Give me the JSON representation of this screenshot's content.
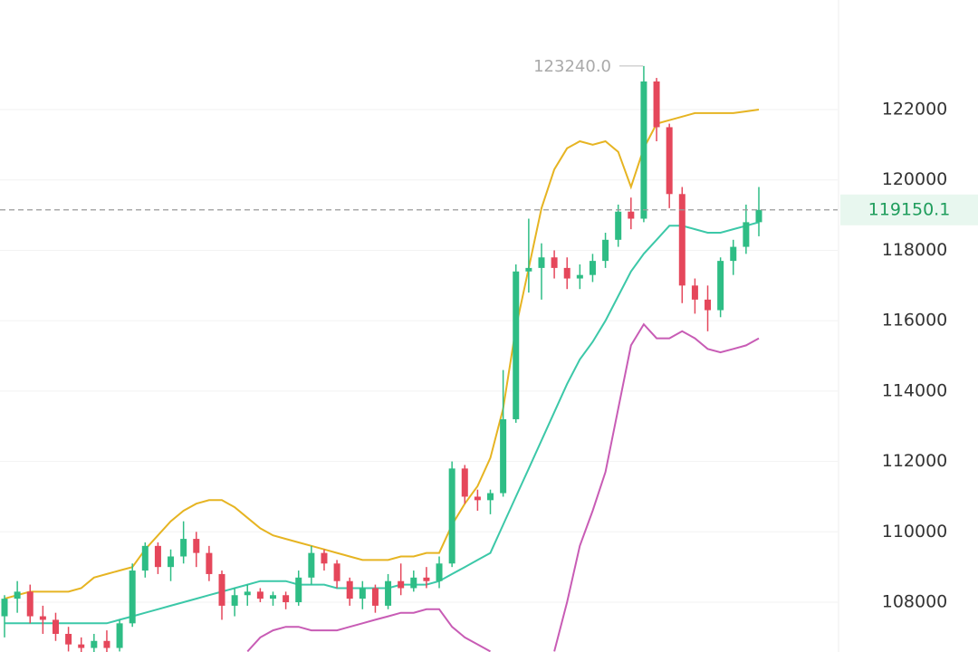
{
  "chart_data": {
    "type": "candlestick",
    "up_color": "#2ebd85",
    "down_color": "#e5475b",
    "open": [
      107600,
      108100,
      108300,
      107600,
      107500,
      107100,
      106800,
      106700,
      106900,
      106700,
      107400,
      108900,
      109600,
      109000,
      109300,
      109800,
      109400,
      108800,
      107900,
      108200,
      108300,
      108100,
      108200,
      108000,
      108700,
      109400,
      109100,
      108600,
      108100,
      108400,
      107900,
      108600,
      108400,
      108700,
      108600,
      109100,
      111800,
      111000,
      110900,
      111100,
      113200,
      117400,
      117500,
      117800,
      117500,
      117200,
      117300,
      117700,
      118300,
      119100,
      118900,
      122800,
      121500,
      119600,
      117000,
      116600,
      116300,
      117700,
      118100,
      118800
    ],
    "high": [
      108200,
      108600,
      108500,
      107900,
      107700,
      107300,
      107000,
      107100,
      107200,
      107500,
      109100,
      109700,
      109700,
      109500,
      110300,
      110000,
      109600,
      108900,
      108400,
      108500,
      108400,
      108300,
      108300,
      108900,
      109600,
      109500,
      109200,
      108700,
      108600,
      108500,
      108800,
      109100,
      108900,
      109000,
      109300,
      112000,
      111900,
      111200,
      111200,
      114600,
      117600,
      118900,
      118200,
      118000,
      117800,
      117600,
      117900,
      118500,
      119300,
      119500,
      123240,
      122900,
      121600,
      119800,
      117200,
      117000,
      117800,
      118300,
      119300,
      119800
    ],
    "low": [
      107000,
      107700,
      107400,
      107100,
      106900,
      106600,
      106500,
      106400,
      106500,
      106600,
      107300,
      108700,
      108800,
      108600,
      109100,
      109000,
      108600,
      107500,
      107600,
      107900,
      108000,
      107900,
      107800,
      107900,
      108500,
      108900,
      108400,
      107900,
      107800,
      107700,
      107800,
      108200,
      108300,
      108400,
      108400,
      109000,
      110800,
      110600,
      110500,
      111000,
      113100,
      116800,
      116600,
      117200,
      116900,
      116900,
      117100,
      117500,
      118100,
      118600,
      118800,
      121100,
      119200,
      116500,
      116200,
      115700,
      116100,
      117300,
      117900,
      118400
    ],
    "close": [
      108100,
      108300,
      107600,
      107500,
      107100,
      106800,
      106700,
      106900,
      106700,
      107400,
      108900,
      109600,
      109000,
      109300,
      109800,
      109400,
      108800,
      107900,
      108200,
      108300,
      108100,
      108200,
      108000,
      108700,
      109400,
      109100,
      108600,
      108100,
      108400,
      107900,
      108600,
      108400,
      108700,
      108600,
      109100,
      111800,
      111000,
      110900,
      111100,
      113200,
      117400,
      117500,
      117800,
      117500,
      117200,
      117300,
      117700,
      118300,
      119100,
      118900,
      122800,
      121500,
      119600,
      117000,
      116600,
      116300,
      117700,
      118100,
      118800,
      119150.1
    ],
    "lines": [
      {
        "color": "#e6b422",
        "values": [
          108100,
          108200,
          108300,
          108300,
          108300,
          108300,
          108400,
          108700,
          108800,
          108900,
          109000,
          109500,
          109900,
          110300,
          110600,
          110800,
          110900,
          110900,
          110700,
          110400,
          110100,
          109900,
          109800,
          109700,
          109600,
          109500,
          109400,
          109300,
          109200,
          109200,
          109200,
          109300,
          109300,
          109400,
          109400,
          110200,
          110800,
          111300,
          112100,
          113500,
          115800,
          117500,
          119200,
          120300,
          120900,
          121100,
          121000,
          121100,
          120800,
          119800,
          120900,
          121600,
          121700,
          121800,
          121900,
          121900,
          121900,
          121900,
          121950,
          122000
        ]
      },
      {
        "color": "#3cc8a8",
        "values": [
          107400,
          107400,
          107400,
          107400,
          107400,
          107400,
          107400,
          107400,
          107400,
          107500,
          107600,
          107700,
          107800,
          107900,
          108000,
          108100,
          108200,
          108300,
          108400,
          108500,
          108600,
          108600,
          108600,
          108500,
          108500,
          108500,
          108400,
          108400,
          108400,
          108400,
          108400,
          108500,
          108500,
          108500,
          108600,
          108800,
          109000,
          109200,
          109400,
          110200,
          111000,
          111800,
          112600,
          113400,
          114200,
          114900,
          115400,
          116000,
          116700,
          117400,
          117900,
          118300,
          118700,
          118700,
          118600,
          118500,
          118500,
          118600,
          118700,
          118800
        ]
      },
      {
        "color": "#c85cb5",
        "values": [
          null,
          null,
          null,
          null,
          null,
          null,
          null,
          null,
          null,
          null,
          null,
          null,
          null,
          null,
          null,
          null,
          null,
          null,
          null,
          106600,
          107000,
          107200,
          107300,
          107300,
          107200,
          107200,
          107200,
          107300,
          107400,
          107500,
          107600,
          107700,
          107700,
          107800,
          107800,
          107300,
          107000,
          106800,
          106600,
          null,
          null,
          null,
          null,
          106600,
          108000,
          109600,
          110600,
          111700,
          113500,
          115300,
          115900,
          115500,
          115500,
          115700,
          115500,
          115200,
          115100,
          115200,
          115300,
          115500
        ]
      }
    ],
    "ylim": [
      106585,
      125115
    ],
    "yticks": [
      108000,
      110000,
      112000,
      114000,
      116000,
      118000,
      120000,
      122000
    ],
    "grid": true,
    "last_price": 119150.1,
    "high_annotation": {
      "value": 123240,
      "label": "123240.0"
    }
  }
}
